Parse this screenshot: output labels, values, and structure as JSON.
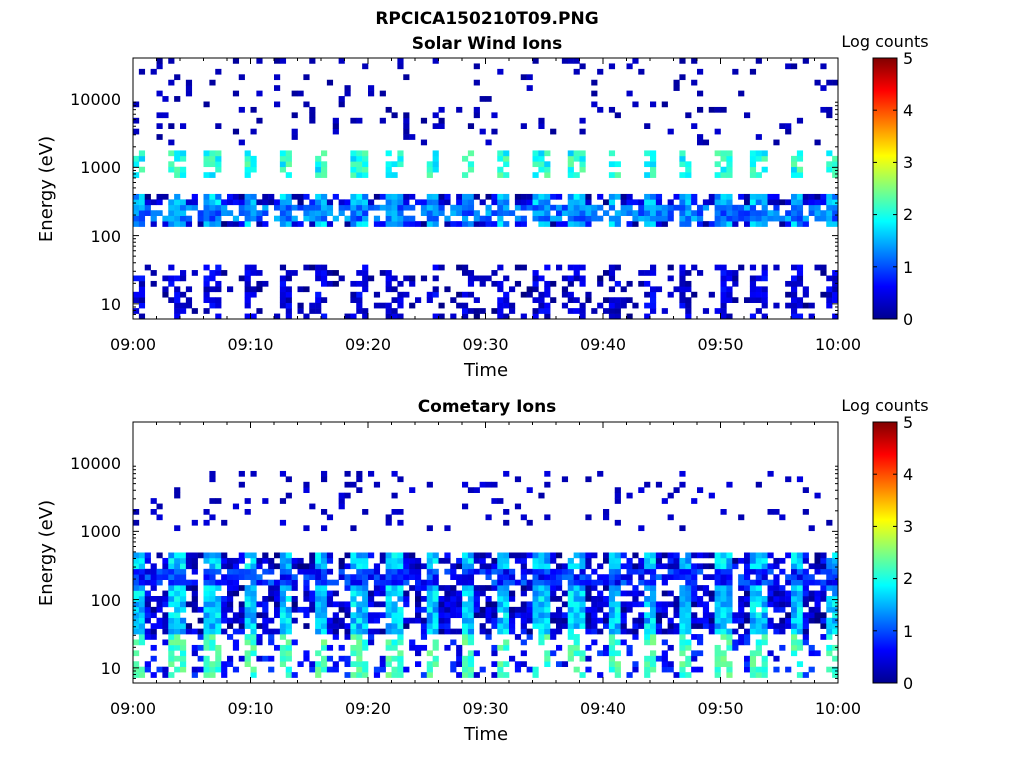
{
  "figure": {
    "title": "RPCICA150210T09.PNG"
  },
  "chart_data": [
    {
      "type": "heatmap",
      "title": "Solar Wind Ions",
      "xlabel": "Time",
      "ylabel": "Energy (eV)",
      "x_ticks": [
        "09:00",
        "09:10",
        "09:20",
        "09:30",
        "09:40",
        "09:50",
        "10:00"
      ],
      "y_ticks": [
        "10",
        "100",
        "1000",
        "10000"
      ],
      "xlim": [
        "09:00",
        "10:00"
      ],
      "ylim": [
        6,
        40000
      ],
      "y_scale": "log",
      "colorbar": {
        "label": "Log counts",
        "ticks": [
          "0",
          "1",
          "2",
          "3",
          "4",
          "5"
        ],
        "range": [
          0,
          5
        ],
        "colormap": "jet"
      },
      "profile": {
        "band_energy_eV": [
          130,
          400
        ],
        "peak_energy_eV": 220,
        "high_band_energy_eV": [
          700,
          1700
        ],
        "sparse_high_energy_eV": [
          2000,
          40000
        ],
        "low_band_energy_eV": [
          6,
          40
        ],
        "typical_log_counts": {
          "peak": 1.2,
          "band": 1.5,
          "high_band": 2.0,
          "sparse": 0.1
        },
        "pulse_period_min": 3.1
      }
    },
    {
      "type": "heatmap",
      "title": "Cometary Ions",
      "xlabel": "Time",
      "ylabel": "Energy (eV)",
      "x_ticks": [
        "09:00",
        "09:10",
        "09:20",
        "09:30",
        "09:40",
        "09:50",
        "10:00"
      ],
      "y_ticks": [
        "10",
        "100",
        "1000",
        "10000"
      ],
      "xlim": [
        "09:00",
        "10:00"
      ],
      "ylim": [
        6,
        40000
      ],
      "y_scale": "log",
      "colorbar": {
        "label": "Log counts",
        "ticks": [
          "0",
          "1",
          "2",
          "3",
          "4",
          "5"
        ],
        "range": [
          0,
          5
        ],
        "colormap": "jet"
      },
      "profile": {
        "band_energy_eV": [
          30,
          500
        ],
        "peak_energy_eV": 200,
        "low_band_energy_eV": [
          7,
          30
        ],
        "sparse_high_energy_eV": [
          1000,
          8000
        ],
        "typical_log_counts": {
          "peak": 0.8,
          "band": 1.6,
          "low_band": 2.2,
          "sparse": 0.2
        },
        "pulse_period_min": 3.1
      }
    }
  ]
}
